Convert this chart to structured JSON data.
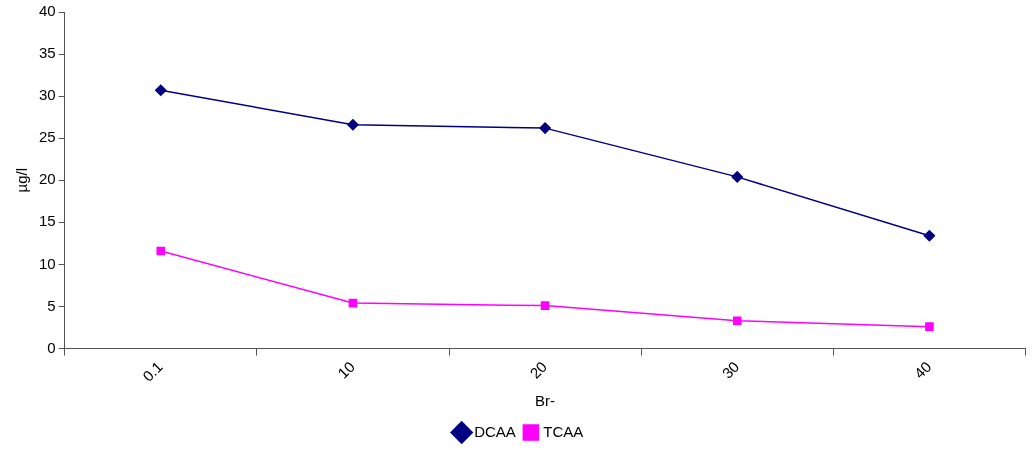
{
  "chart_data": {
    "type": "line",
    "xlabel": "Br-",
    "ylabel": "µg/l",
    "categories": [
      "0.1",
      "10",
      "20",
      "30",
      "40"
    ],
    "series": [
      {
        "name": "DCAA",
        "color": "#000080",
        "marker": "diamond",
        "values": [
          30.7,
          26.6,
          26.2,
          20.4,
          13.4
        ]
      },
      {
        "name": "TCAA",
        "color": "#ff00ff",
        "marker": "square",
        "values": [
          11.6,
          5.4,
          5.1,
          3.3,
          2.6
        ]
      }
    ],
    "ylim": [
      0,
      40
    ],
    "yticks": [
      0,
      5,
      10,
      15,
      20,
      25,
      30,
      35,
      40
    ],
    "grid": false,
    "legend": "bottom",
    "line_style": "solid"
  }
}
